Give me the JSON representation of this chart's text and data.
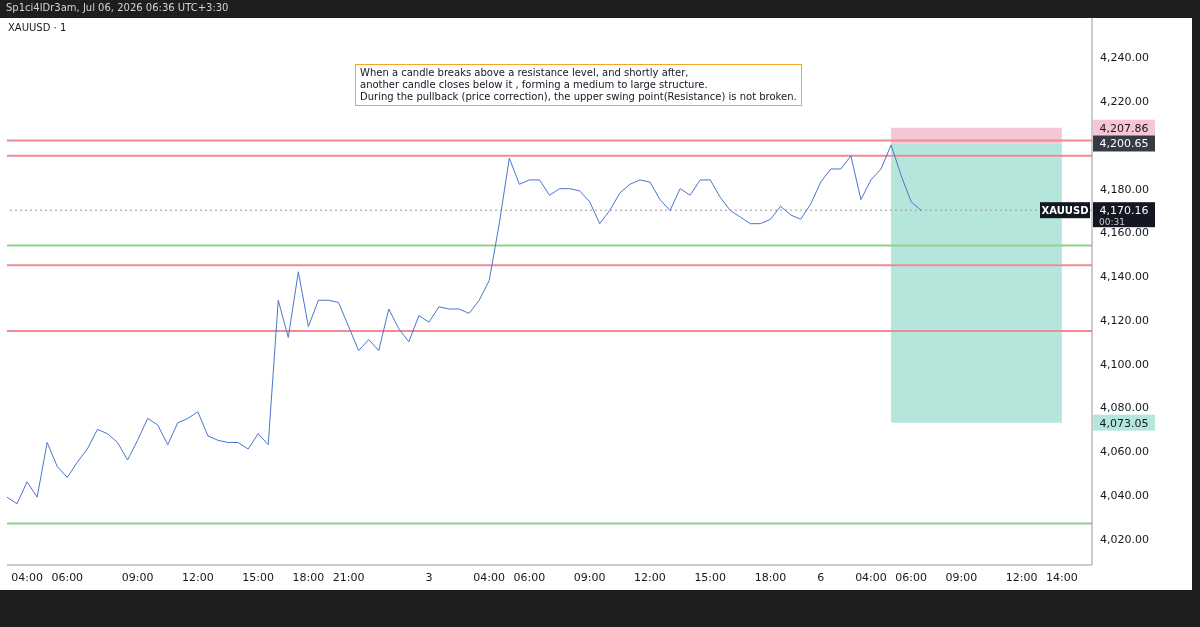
{
  "chart_data": {
    "type": "line",
    "title": "XAUUSD · 1",
    "subtitle": "Sp1ci4lDr3am, Jul 06, 2026 06:36 UTC+3:30",
    "annotations": [
      "When a candle breaks above a resistance level, and shortly after,\nanother candle closes below it , forming a medium to large structure.\nDuring the pullback (price correction), the upper swing point(Resistance) is not broken.",
      "4,207.86",
      "4,200.65",
      "4,170.16",
      "4,073.05",
      "00:31"
    ],
    "categories": [
      null,
      null,
      "04:00",
      null,
      null,
      null,
      "06:00",
      null,
      null,
      null,
      null,
      null,
      null,
      "09:00",
      null,
      null,
      null,
      null,
      null,
      "12:00",
      null,
      null,
      null,
      null,
      null,
      "15:00",
      null,
      null,
      null,
      null,
      "18:00",
      null,
      null,
      null,
      "21:00",
      null,
      null,
      null,
      null,
      null,
      null,
      null,
      "3",
      null,
      null,
      null,
      null,
      null,
      "04:00",
      null,
      null,
      null,
      "06:00",
      null,
      null,
      null,
      null,
      null,
      "09:00",
      null,
      null,
      null,
      null,
      null,
      "12:00",
      null,
      null,
      null,
      null,
      null,
      "15:00",
      null,
      null,
      null,
      null,
      null,
      "18:00",
      null,
      null,
      null,
      null,
      "6",
      null,
      null,
      null,
      null,
      "04:00",
      null,
      null,
      null,
      "06:00",
      null,
      null,
      null,
      null,
      "09:00",
      null,
      null,
      null,
      null,
      null,
      "12:00",
      null,
      null,
      null,
      "14:00",
      null,
      null,
      null
    ],
    "series": [
      {
        "color": "#4a76c9",
        "values": [
          4039,
          4036,
          4046,
          4039,
          4064,
          4053,
          4048,
          4055,
          4061,
          4070,
          4068,
          4064,
          4056,
          4065,
          4075,
          4072,
          4063,
          4073,
          4075,
          4078,
          4067,
          4065,
          4064,
          4064,
          4061,
          4068,
          4063,
          4129,
          4112,
          4142,
          4117,
          4129,
          4129,
          4128,
          4117,
          4106,
          4111,
          4106,
          4125,
          4116,
          4110,
          4122,
          4119,
          4126,
          4125,
          4125,
          4123,
          4129,
          4138,
          4164,
          4194,
          4182,
          4184,
          4184,
          4177,
          4180,
          4180,
          4179,
          4174,
          4164,
          4170,
          4178,
          4182,
          4184,
          4183,
          4175,
          4170,
          4180,
          4177,
          4184,
          4184,
          4176,
          4170,
          4167,
          4164,
          4164,
          4166,
          4172,
          4168,
          4166,
          4173,
          4183,
          4189,
          4189,
          4195,
          4175,
          4184,
          4189,
          4200,
          4186,
          4174,
          4170,
          null,
          null,
          null,
          null,
          null,
          null,
          null,
          null,
          null,
          null,
          null,
          null,
          null,
          null,
          null,
          null,
          null
        ]
      }
    ],
    "ylim": [
      4008,
      4258
    ],
    "yticks": [
      {
        "value": 4020,
        "label": "4,020.00"
      },
      {
        "value": 4040,
        "label": "4,040.00"
      },
      {
        "value": 4060,
        "label": "4,060.00"
      },
      {
        "value": 4080,
        "label": "4,080.00"
      },
      {
        "value": 4100,
        "label": "4,100.00"
      },
      {
        "value": 4120,
        "label": "4,120.00"
      },
      {
        "value": 4140,
        "label": "4,140.00"
      },
      {
        "value": 4160,
        "label": "4,160.00"
      },
      {
        "value": 4180,
        "label": "4,180.00"
      },
      {
        "value": 4220,
        "label": "4,220.00"
      },
      {
        "value": 4240,
        "label": "4,240.00"
      }
    ],
    "ref_lines": [
      {
        "axis": "y",
        "value": 4145,
        "color": "#f08a94"
      },
      {
        "axis": "y",
        "value": 4115,
        "color": "#f08a94"
      },
      {
        "axis": "y",
        "value": 4195,
        "color": "#f08a94"
      },
      {
        "axis": "y",
        "value": 4202,
        "color": "#f08a94"
      },
      {
        "axis": "y",
        "value": 4027,
        "color": "#8fcf8f"
      },
      {
        "axis": "y",
        "value": 4154,
        "color": "#8fcf8f"
      },
      {
        "axis": "y",
        "value": 4170.16,
        "label": "XAUUSD",
        "color": "#9a9a9a",
        "line_style": "dotted"
      }
    ],
    "bands": [
      {
        "axis": "y",
        "from": 4200.65,
        "to": 4207.86,
        "color": "#f7c6d6"
      },
      {
        "axis": "y",
        "from": 4073.05,
        "to": 4200.65,
        "color": "#b4e6dc"
      }
    ],
    "legend": false,
    "grid": false,
    "marker": "none",
    "line_style": "solid"
  }
}
